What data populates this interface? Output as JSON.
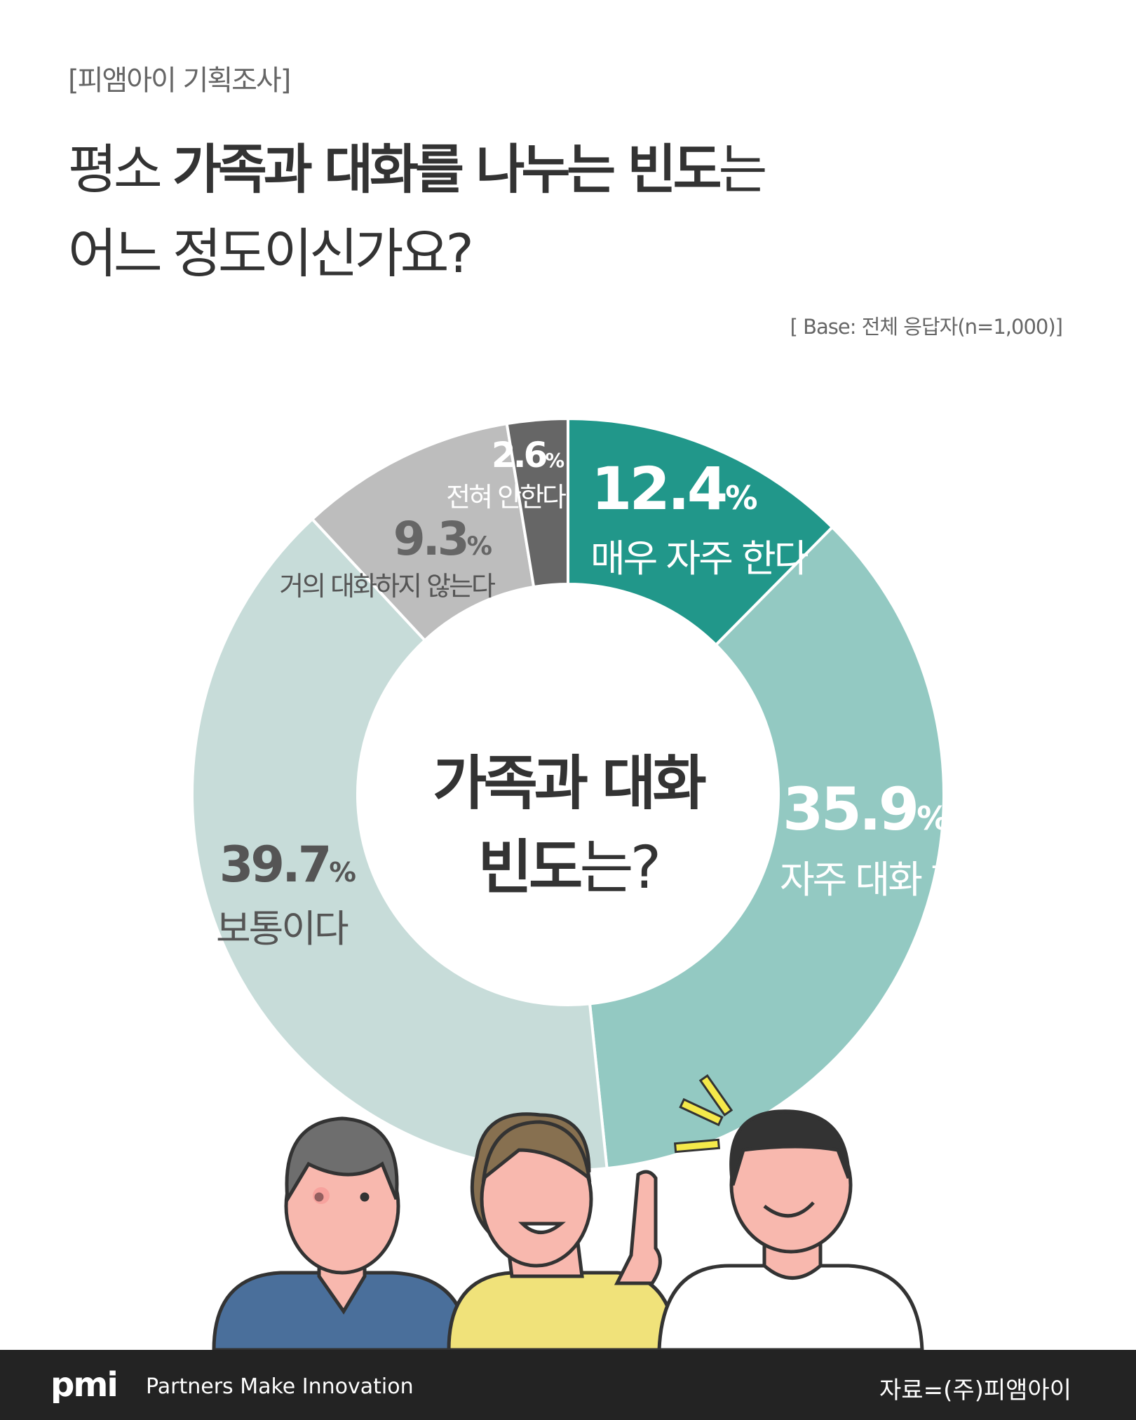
{
  "header": {
    "tag": "[피앰아이 기획조사]",
    "title_line1_regular": "평소 ",
    "title_line1_bold": "가족과 대화를 나누는 빈도",
    "title_line1_end": "는",
    "title_line2": "어느 정도이신가요?",
    "base": "[ Base: 전체 응답자(n=1,000)]"
  },
  "center": {
    "line1": "가족과 대화",
    "line2_bold": "빈도",
    "line2_end": "는?"
  },
  "chart_data": {
    "type": "pie",
    "donut": true,
    "start": "top",
    "direction": "clockwise",
    "categories": [
      "매우 자주 한다",
      "자주 대화 한다",
      "보통이다",
      "거의 대화하지 않는다",
      "전혀 안한다"
    ],
    "values": [
      12.4,
      35.9,
      39.7,
      9.3,
      2.6
    ],
    "labels": [
      "12.4",
      "35.9",
      "39.7",
      "9.3",
      "2.6"
    ],
    "unit": "%",
    "colors": [
      "#21978a",
      "#93c9c2",
      "#c7dcd9",
      "#bdbdbd",
      "#666666"
    ]
  },
  "footer": {
    "logo": "pmi",
    "slogan": "Partners Make Innovation",
    "source": "자료=(주)피앰아이"
  }
}
